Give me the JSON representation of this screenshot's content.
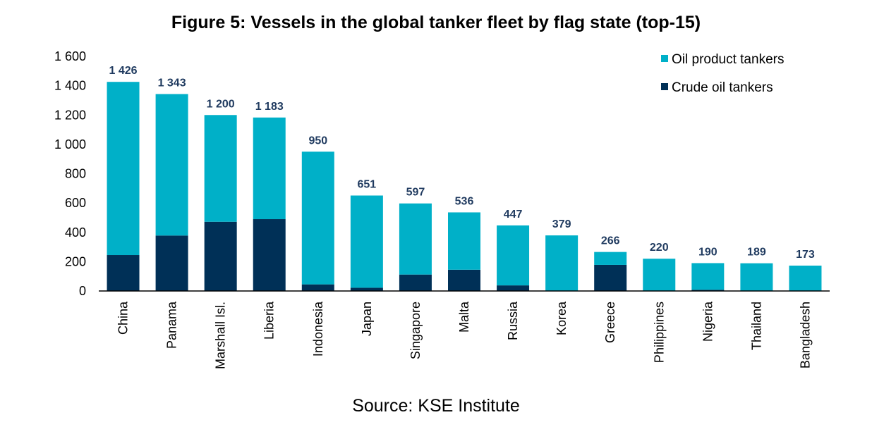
{
  "chart_data": {
    "type": "bar",
    "stacked": true,
    "title": "Figure 5: Vessels in the global tanker fleet by flag state (top-15)",
    "source": "Source: KSE Institute",
    "categories": [
      "China",
      "Panama",
      "Marshall Isl.",
      "Liberia",
      "Indonesia",
      "Japan",
      "Singapore",
      "Malta",
      "Russia",
      "Korea",
      "Greece",
      "Philippines",
      "Nigeria",
      "Thailand",
      "Bangladesh"
    ],
    "series": [
      {
        "name": "Crude oil tankers",
        "color": "#003057",
        "values": [
          245,
          378,
          472,
          490,
          45,
          22,
          112,
          145,
          38,
          0,
          178,
          0,
          8,
          0,
          0
        ]
      },
      {
        "name": "Oil product tankers",
        "color": "#00b0c8",
        "values": [
          1181,
          965,
          728,
          693,
          905,
          629,
          485,
          391,
          409,
          379,
          88,
          220,
          182,
          189,
          173
        ]
      }
    ],
    "totals": [
      "1 426",
      "1 343",
      "1 200",
      "1 183",
      "950",
      "651",
      "597",
      "536",
      "447",
      "379",
      "266",
      "220",
      "190",
      "189",
      "173"
    ],
    "ylim": [
      0,
      1600
    ],
    "yticks": [
      "0",
      "200",
      "400",
      "600",
      "800",
      "1 000",
      "1 200",
      "1 400",
      "1 600"
    ],
    "legend": {
      "placement": "top-right",
      "items": [
        {
          "label": "Oil product tankers",
          "color": "#00b0c8"
        },
        {
          "label": "Crude oil tankers",
          "color": "#003057"
        }
      ]
    },
    "grid": false
  }
}
